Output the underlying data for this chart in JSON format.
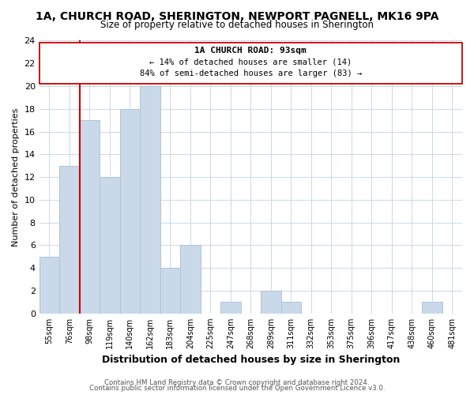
{
  "title_line1": "1A, CHURCH ROAD, SHERINGTON, NEWPORT PAGNELL, MK16 9PA",
  "title_line2": "Size of property relative to detached houses in Sherington",
  "xlabel": "Distribution of detached houses by size in Sherington",
  "ylabel": "Number of detached properties",
  "bin_labels": [
    "55sqm",
    "76sqm",
    "98sqm",
    "119sqm",
    "140sqm",
    "162sqm",
    "183sqm",
    "204sqm",
    "225sqm",
    "247sqm",
    "268sqm",
    "289sqm",
    "311sqm",
    "332sqm",
    "353sqm",
    "375sqm",
    "396sqm",
    "417sqm",
    "438sqm",
    "460sqm",
    "481sqm"
  ],
  "bar_heights": [
    5,
    13,
    17,
    12,
    18,
    20,
    4,
    6,
    0,
    1,
    0,
    2,
    1,
    0,
    0,
    0,
    0,
    0,
    0,
    1,
    0
  ],
  "bar_color": "#c9d9ea",
  "bar_edge_color": "#afc4d8",
  "vline_color": "#cc0000",
  "annotation_title": "1A CHURCH ROAD: 93sqm",
  "annotation_line2": "← 14% of detached houses are smaller (14)",
  "annotation_line3": "84% of semi-detached houses are larger (83) →",
  "box_edge_color": "#cc0000",
  "ylim": [
    0,
    24
  ],
  "yticks": [
    0,
    2,
    4,
    6,
    8,
    10,
    12,
    14,
    16,
    18,
    20,
    22,
    24
  ],
  "footer_line1": "Contains HM Land Registry data © Crown copyright and database right 2024.",
  "footer_line2": "Contains public sector information licensed under the Open Government Licence v3.0.",
  "background_color": "#ffffff",
  "grid_color": "#ccd8e8"
}
